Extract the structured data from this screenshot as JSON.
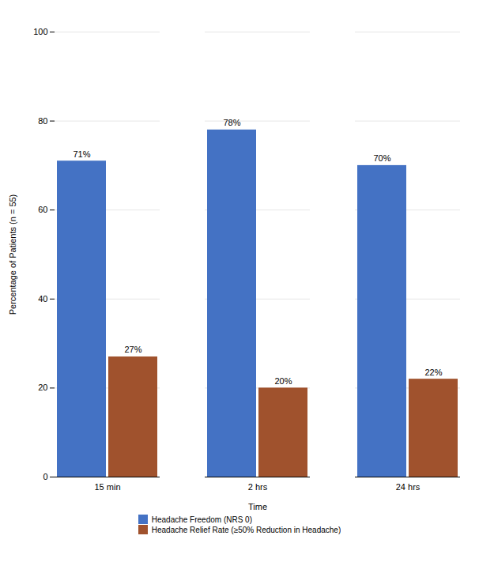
{
  "chart_data": {
    "type": "bar",
    "categories": [
      "15 min",
      "2 hrs",
      "24 hrs"
    ],
    "series": [
      {
        "name": "Headache Freedom (NRS 0)",
        "color": "#4472C4",
        "values": [
          71,
          78,
          70
        ],
        "value_labels": [
          "71%",
          "78%",
          "70%"
        ]
      },
      {
        "name": "Headache Relief Rate (≥50% Reduction in Headache)",
        "color": "#A0522D",
        "values": [
          27,
          20,
          22
        ],
        "value_labels": [
          "27%",
          "20%",
          "22%"
        ]
      }
    ],
    "xlabel": "Time",
    "ylabel": "Percentage of Patients (n = 55)",
    "ylim": [
      0,
      100
    ],
    "yticks": [
      0,
      20,
      40,
      60,
      80,
      100
    ],
    "grid": true,
    "data_labels": true,
    "legend": "bottom"
  }
}
